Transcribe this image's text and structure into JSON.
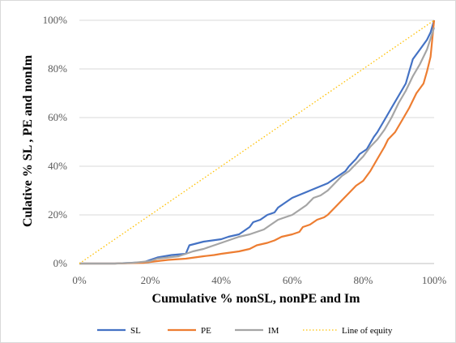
{
  "chart_data": {
    "type": "line",
    "xlabel": "Cumulative % nonSL, nonPE and Im",
    "ylabel": "Culative %  SL , PE and nonIm",
    "xlim": [
      0,
      100
    ],
    "ylim": [
      0,
      100
    ],
    "x_ticks": [
      "0%",
      "20%",
      "40%",
      "60%",
      "80%",
      "100%"
    ],
    "y_ticks": [
      "0%",
      "20%",
      "40%",
      "60%",
      "80%",
      "100%"
    ],
    "grid": "horizontal",
    "legend_position": "bottom",
    "series": [
      {
        "name": "SL",
        "color": "#4472C4",
        "dash": "solid",
        "points": [
          [
            0,
            0
          ],
          [
            10,
            0
          ],
          [
            18,
            0.5
          ],
          [
            20,
            1.5
          ],
          [
            22,
            2.5
          ],
          [
            26,
            3.5
          ],
          [
            30,
            4
          ],
          [
            31,
            7.5
          ],
          [
            35,
            9
          ],
          [
            40,
            10
          ],
          [
            42,
            11
          ],
          [
            45,
            12
          ],
          [
            46,
            13
          ],
          [
            48,
            15
          ],
          [
            49,
            17
          ],
          [
            51,
            18
          ],
          [
            53,
            20
          ],
          [
            55,
            21
          ],
          [
            56,
            23
          ],
          [
            58,
            25
          ],
          [
            60,
            27
          ],
          [
            65,
            30
          ],
          [
            70,
            33
          ],
          [
            72,
            35
          ],
          [
            75,
            38
          ],
          [
            76,
            40
          ],
          [
            78,
            43
          ],
          [
            79,
            45
          ],
          [
            81,
            47
          ],
          [
            83,
            52
          ],
          [
            84,
            54
          ],
          [
            86,
            59
          ],
          [
            88,
            64
          ],
          [
            90,
            69
          ],
          [
            92,
            74
          ],
          [
            93,
            79
          ],
          [
            94,
            84
          ],
          [
            96,
            88
          ],
          [
            98,
            92
          ],
          [
            99,
            95
          ],
          [
            100,
            100
          ]
        ]
      },
      {
        "name": "PE",
        "color": "#ED7D31",
        "dash": "solid",
        "points": [
          [
            0,
            0
          ],
          [
            10,
            0
          ],
          [
            18,
            0.3
          ],
          [
            22,
            1
          ],
          [
            25,
            1.5
          ],
          [
            30,
            2
          ],
          [
            35,
            3
          ],
          [
            38,
            3.5
          ],
          [
            40,
            4
          ],
          [
            45,
            5
          ],
          [
            48,
            6
          ],
          [
            50,
            7.5
          ],
          [
            53,
            8.5
          ],
          [
            55,
            9.5
          ],
          [
            57,
            11
          ],
          [
            60,
            12
          ],
          [
            62,
            13
          ],
          [
            63,
            15
          ],
          [
            65,
            16
          ],
          [
            67,
            18
          ],
          [
            69,
            19
          ],
          [
            70,
            20
          ],
          [
            72,
            23
          ],
          [
            74,
            26
          ],
          [
            76,
            29
          ],
          [
            78,
            32
          ],
          [
            80,
            34
          ],
          [
            82,
            38
          ],
          [
            84,
            43
          ],
          [
            86,
            48
          ],
          [
            87,
            51
          ],
          [
            89,
            54
          ],
          [
            91,
            59
          ],
          [
            93,
            64
          ],
          [
            95,
            70
          ],
          [
            97,
            74
          ],
          [
            98,
            79
          ],
          [
            99,
            85
          ],
          [
            100,
            100
          ]
        ]
      },
      {
        "name": "IM",
        "color": "#A5A5A5",
        "dash": "solid",
        "points": [
          [
            0,
            0
          ],
          [
            10,
            0
          ],
          [
            15,
            0.3
          ],
          [
            20,
            1
          ],
          [
            22,
            2
          ],
          [
            25,
            2.5
          ],
          [
            28,
            3
          ],
          [
            30,
            4
          ],
          [
            32,
            5
          ],
          [
            35,
            6
          ],
          [
            38,
            7.5
          ],
          [
            40,
            8.5
          ],
          [
            43,
            10
          ],
          [
            45,
            11
          ],
          [
            48,
            12
          ],
          [
            50,
            13
          ],
          [
            52,
            14
          ],
          [
            54,
            16
          ],
          [
            56,
            18
          ],
          [
            58,
            19
          ],
          [
            60,
            20
          ],
          [
            62,
            22
          ],
          [
            64,
            24
          ],
          [
            66,
            27
          ],
          [
            68,
            28
          ],
          [
            70,
            30
          ],
          [
            72,
            33
          ],
          [
            74,
            36
          ],
          [
            76,
            38
          ],
          [
            78,
            41
          ],
          [
            80,
            44
          ],
          [
            82,
            48
          ],
          [
            84,
            51
          ],
          [
            86,
            55
          ],
          [
            88,
            60
          ],
          [
            90,
            66
          ],
          [
            92,
            71
          ],
          [
            94,
            77
          ],
          [
            96,
            82
          ],
          [
            98,
            88
          ],
          [
            100,
            97
          ]
        ]
      },
      {
        "name": "Line of equity",
        "color": "#FFC000",
        "dash": "dotted",
        "points": [
          [
            0,
            0
          ],
          [
            100,
            100
          ]
        ]
      }
    ]
  }
}
